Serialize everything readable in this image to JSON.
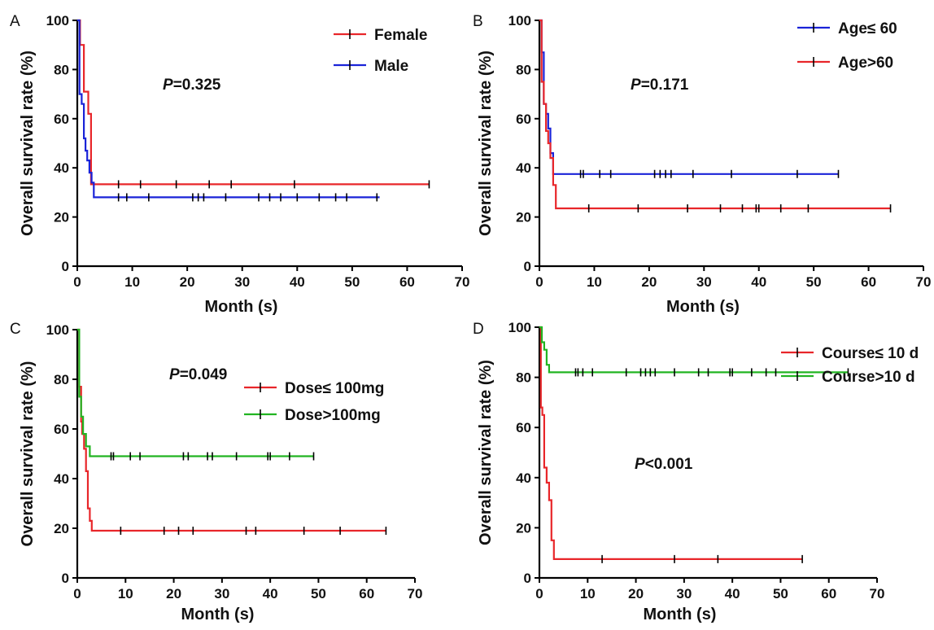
{
  "chart_data": [
    {
      "type": "line",
      "panel": "A",
      "xlabel": "Month (s)",
      "ylabel": "Overall survival rate (%)",
      "xlim": [
        0,
        70
      ],
      "ylim": [
        0,
        100
      ],
      "xticks": [
        "0",
        "10",
        "20",
        "30",
        "40",
        "50",
        "60",
        "70"
      ],
      "yticks": [
        "0",
        "20",
        "40",
        "60",
        "80",
        "100"
      ],
      "p_label": "P",
      "p_value": "=0.325",
      "legend_position": "top-right",
      "series": [
        {
          "name": "Female",
          "color": "#e8262a",
          "x": [
            0,
            0.5,
            0.5,
            1.2,
            1.2,
            2.0,
            2.0,
            2.5,
            2.5,
            64
          ],
          "y": [
            100,
            100,
            90,
            90,
            71,
            71,
            62,
            62,
            33.3,
            33.3
          ],
          "censored_x": [
            7.5,
            11.5,
            18,
            24,
            28,
            39.5,
            64
          ]
        },
        {
          "name": "Male",
          "color": "#1a23d8",
          "x": [
            0,
            0.4,
            0.4,
            0.8,
            0.8,
            1.2,
            1.2,
            1.5,
            1.5,
            1.8,
            1.8,
            2.2,
            2.2,
            2.6,
            2.6,
            3.0,
            3.0,
            55
          ],
          "y": [
            100,
            100,
            70,
            70,
            66,
            66,
            52,
            52,
            47,
            47,
            43,
            43,
            38,
            38,
            34,
            34,
            28,
            28
          ],
          "censored_x": [
            7.5,
            9,
            13,
            21,
            22,
            23,
            27,
            33,
            35,
            37,
            40,
            44,
            47,
            49,
            54.5
          ]
        }
      ]
    },
    {
      "type": "line",
      "panel": "B",
      "xlabel": "Month (s)",
      "ylabel": "Overall survival rate (%)",
      "xlim": [
        0,
        70
      ],
      "ylim": [
        0,
        100
      ],
      "xticks": [
        "0",
        "10",
        "20",
        "30",
        "40",
        "50",
        "60",
        "70"
      ],
      "yticks": [
        "0",
        "20",
        "40",
        "60",
        "80",
        "100"
      ],
      "p_label": "P",
      "p_value": "=0.171",
      "legend_position": "top-right",
      "series": [
        {
          "name": "Age≤ 60",
          "color": "#1a23d8",
          "x": [
            0,
            0.4,
            0.4,
            0.8,
            0.8,
            1.2,
            1.2,
            1.6,
            1.6,
            2.0,
            2.0,
            2.5,
            2.5,
            54.5
          ],
          "y": [
            100,
            100,
            87,
            87,
            66,
            66,
            62,
            62,
            56,
            56,
            46,
            46,
            37.5,
            37.5
          ],
          "censored_x": [
            7.5,
            8,
            11,
            13,
            21,
            22,
            23,
            24,
            28,
            35,
            47,
            54.5
          ]
        },
        {
          "name": "Age>60",
          "color": "#e8262a",
          "x": [
            0,
            0.4,
            0.4,
            0.8,
            0.8,
            1.2,
            1.2,
            1.6,
            1.6,
            2.0,
            2.0,
            2.5,
            2.5,
            3.0,
            3.0,
            64
          ],
          "y": [
            100,
            100,
            75,
            75,
            66,
            66,
            55,
            55,
            50,
            50,
            44,
            44,
            33,
            33,
            23.5,
            23.5
          ],
          "censored_x": [
            9,
            18,
            27,
            33,
            37,
            39.5,
            40,
            44,
            49,
            64
          ]
        }
      ]
    },
    {
      "type": "line",
      "panel": "C",
      "xlabel": "Month (s)",
      "ylabel": "Overall survival rate (%)",
      "xlim": [
        0,
        70
      ],
      "ylim": [
        0,
        100
      ],
      "xticks": [
        "0",
        "10",
        "20",
        "30",
        "40",
        "50",
        "60",
        "70"
      ],
      "yticks": [
        "0",
        "20",
        "40",
        "60",
        "80",
        "100"
      ],
      "p_label": "P",
      "p_value": "=0.049",
      "legend_position": "top-right",
      "series": [
        {
          "name": "Dose≤ 100mg",
          "color": "#e8262a",
          "x": [
            0,
            0.4,
            0.4,
            0.8,
            0.8,
            1.0,
            1.0,
            1.4,
            1.4,
            1.8,
            1.8,
            2.2,
            2.2,
            2.6,
            2.6,
            3.0,
            3.0,
            64
          ],
          "y": [
            100,
            100,
            77,
            77,
            63,
            63,
            58,
            58,
            52,
            52,
            43,
            43,
            28,
            28,
            23,
            23,
            19,
            19
          ],
          "censored_x": [
            9,
            18,
            21,
            24,
            35,
            37,
            47,
            54.5,
            64
          ]
        },
        {
          "name": "Dose>100mg",
          "color": "#22b422",
          "x": [
            0,
            0.4,
            0.4,
            0.8,
            0.8,
            1.2,
            1.2,
            1.8,
            1.8,
            2.6,
            2.6,
            49
          ],
          "y": [
            100,
            100,
            73,
            73,
            65,
            65,
            58,
            58,
            53,
            53,
            49,
            49
          ],
          "censored_x": [
            7,
            7.5,
            11,
            13,
            22,
            23,
            27,
            28,
            33,
            39.5,
            40,
            44,
            49
          ]
        }
      ]
    },
    {
      "type": "line",
      "panel": "D",
      "xlabel": "Month (s)",
      "ylabel": "Overall survival rate (%)",
      "xlim": [
        0,
        70
      ],
      "ylim": [
        0,
        100
      ],
      "xticks": [
        "0",
        "10",
        "20",
        "30",
        "40",
        "50",
        "60",
        "70"
      ],
      "yticks": [
        "0",
        "20",
        "40",
        "60",
        "80",
        "100"
      ],
      "p_label": "P",
      "p_value": "<0.001",
      "legend_position": "top-right",
      "series": [
        {
          "name": "Course≤ 10 d",
          "color": "#e8262a",
          "x": [
            0,
            0.3,
            0.3,
            0.6,
            0.6,
            1.0,
            1.0,
            1.5,
            1.5,
            2.0,
            2.0,
            2.5,
            2.5,
            3.0,
            3.0,
            54.5
          ],
          "y": [
            100,
            100,
            68,
            68,
            65,
            65,
            44,
            44,
            38,
            38,
            31,
            31,
            15,
            15,
            7.5,
            7.5
          ],
          "censored_x": [
            13,
            28,
            37,
            54.5
          ]
        },
        {
          "name": "Course>10 d",
          "color": "#22b422",
          "x": [
            0,
            0.5,
            0.5,
            1.0,
            1.0,
            1.5,
            1.5,
            2.0,
            2.0,
            64
          ],
          "y": [
            100,
            100,
            94,
            94,
            91,
            91,
            85,
            85,
            82,
            82
          ],
          "censored_x": [
            7.5,
            8,
            9,
            11,
            18,
            21,
            22,
            23,
            24,
            28,
            33,
            35,
            39.5,
            40,
            44,
            47,
            49,
            64
          ]
        }
      ]
    }
  ]
}
